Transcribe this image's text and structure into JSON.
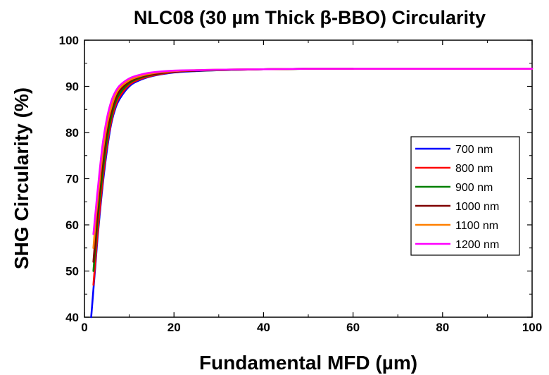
{
  "chart_data": {
    "type": "line",
    "title": "NLC08 (30 µm Thick β-BBO) Circularity",
    "xlabel": "Fundamental MFD (µm)",
    "ylabel": "SHG Circularity (%)",
    "xlim": [
      0,
      100
    ],
    "ylim": [
      40,
      100
    ],
    "xticks": [
      0,
      20,
      40,
      60,
      80,
      100
    ],
    "yticks": [
      40,
      50,
      60,
      70,
      80,
      90,
      100
    ],
    "grid": false,
    "legend_position": "right",
    "series": [
      {
        "name": "700 nm",
        "color": "#0000ff",
        "x": [
          1.5,
          2,
          2.5,
          3,
          4,
          5,
          6,
          7,
          8,
          10,
          12,
          15,
          20,
          25,
          30,
          40,
          50,
          60
        ],
        "y": [
          40,
          46,
          52,
          58,
          68,
          76,
          82,
          85.5,
          87.5,
          90,
          91.2,
          92.2,
          93,
          93.3,
          93.5,
          93.7,
          93.8,
          93.8
        ]
      },
      {
        "name": "800 nm",
        "color": "#ff0000",
        "x": [
          2,
          2.5,
          3,
          4,
          5,
          6,
          7,
          8,
          10,
          12,
          15,
          20,
          25,
          30,
          40,
          50,
          60
        ],
        "y": [
          47,
          53,
          59,
          69,
          77,
          82.5,
          86,
          88,
          90.3,
          91.4,
          92.3,
          93.1,
          93.4,
          93.5,
          93.7,
          93.8,
          93.8
        ]
      },
      {
        "name": "900 nm",
        "color": "#008000",
        "x": [
          2,
          2.5,
          3,
          4,
          5,
          6,
          7,
          8,
          10,
          12,
          15,
          20,
          25,
          30,
          40,
          50,
          60
        ],
        "y": [
          50,
          56,
          62,
          71,
          78.5,
          83.5,
          86.8,
          88.6,
          90.7,
          91.7,
          92.5,
          93.2,
          93.4,
          93.5,
          93.7,
          93.8,
          93.8
        ]
      },
      {
        "name": "1000 nm",
        "color": "#800000",
        "x": [
          2,
          2.5,
          3,
          4,
          5,
          6,
          7,
          8,
          10,
          12,
          15,
          20,
          25,
          30,
          40,
          50,
          60
        ],
        "y": [
          52,
          58,
          64,
          73,
          80,
          84.5,
          87.5,
          89.2,
          91,
          91.9,
          92.6,
          93.2,
          93.4,
          93.6,
          93.7,
          93.8,
          93.8
        ]
      },
      {
        "name": "1100 nm",
        "color": "#ff8000",
        "x": [
          2,
          2.5,
          3,
          4,
          5,
          6,
          7,
          8,
          10,
          12,
          15,
          20,
          25,
          30,
          40,
          50,
          60,
          100
        ],
        "y": [
          55,
          61,
          66,
          75,
          81.5,
          85.5,
          88.3,
          89.8,
          91.3,
          92.1,
          92.8,
          93.3,
          93.5,
          93.6,
          93.7,
          93.8,
          93.8,
          93.8
        ]
      },
      {
        "name": "1200 nm",
        "color": "#ff00ff",
        "x": [
          2,
          2.5,
          3,
          4,
          5,
          6,
          7,
          8,
          10,
          12,
          15,
          20,
          25,
          30,
          40,
          50,
          60,
          80,
          100
        ],
        "y": [
          58,
          63,
          68,
          77,
          83,
          86.8,
          89,
          90.3,
          91.7,
          92.4,
          93,
          93.4,
          93.5,
          93.6,
          93.7,
          93.8,
          93.8,
          93.8,
          93.8
        ]
      }
    ]
  }
}
